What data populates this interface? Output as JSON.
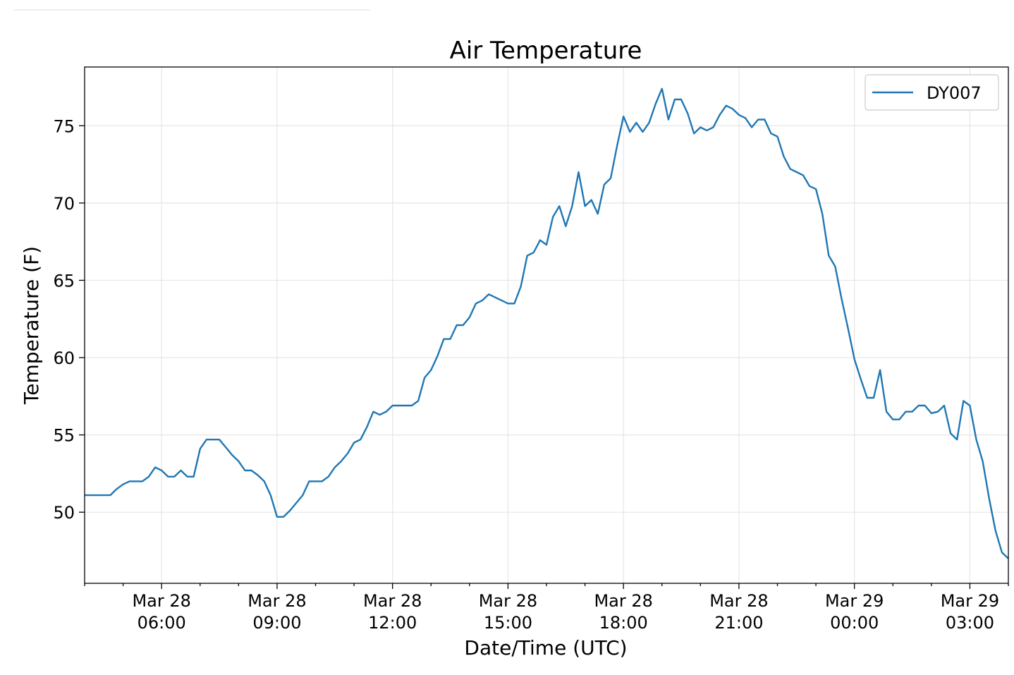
{
  "chart_data": {
    "type": "line",
    "title": "Air Temperature",
    "xlabel": "Date/Time (UTC)",
    "ylabel": "Temperature (F)",
    "x_unit": "hours (UTC), 2019-03-28 00:00 = 0",
    "xlim": [
      4.0,
      28.0
    ],
    "ylim": [
      45.4,
      78.8
    ],
    "x_ticks": [
      {
        "x": 6,
        "line1": "Mar 28",
        "line2": "06:00"
      },
      {
        "x": 9,
        "line1": "Mar 28",
        "line2": "09:00"
      },
      {
        "x": 12,
        "line1": "Mar 28",
        "line2": "12:00"
      },
      {
        "x": 15,
        "line1": "Mar 28",
        "line2": "15:00"
      },
      {
        "x": 18,
        "line1": "Mar 28",
        "line2": "18:00"
      },
      {
        "x": 21,
        "line1": "Mar 28",
        "line2": "21:00"
      },
      {
        "x": 24,
        "line1": "Mar 29",
        "line2": "00:00"
      },
      {
        "x": 27,
        "line1": "Mar 29",
        "line2": "03:00"
      }
    ],
    "x_minor_ticks": [
      4,
      5,
      7,
      8,
      10,
      11,
      13,
      14,
      16,
      17,
      19,
      20,
      22,
      23,
      25,
      26,
      28
    ],
    "y_ticks": [
      50,
      55,
      60,
      65,
      70,
      75
    ],
    "grid": true,
    "legend": {
      "placement": "top-right"
    },
    "series": [
      {
        "name": "DY007",
        "color": "#1f77b4",
        "x": [
          4.0,
          4.167,
          4.333,
          4.5,
          4.667,
          4.833,
          5.0,
          5.167,
          5.333,
          5.5,
          5.667,
          5.833,
          6.0,
          6.167,
          6.333,
          6.5,
          6.667,
          6.833,
          7.0,
          7.167,
          7.333,
          7.5,
          7.667,
          7.833,
          8.0,
          8.167,
          8.333,
          8.5,
          8.667,
          8.833,
          9.0,
          9.167,
          9.333,
          9.5,
          9.667,
          9.833,
          10.0,
          10.167,
          10.333,
          10.5,
          10.667,
          10.833,
          11.0,
          11.167,
          11.333,
          11.5,
          11.667,
          11.833,
          12.0,
          12.167,
          12.333,
          12.5,
          12.667,
          12.833,
          13.0,
          13.167,
          13.333,
          13.5,
          13.667,
          13.833,
          14.0,
          14.167,
          14.333,
          14.5,
          14.667,
          14.833,
          15.0,
          15.167,
          15.333,
          15.5,
          15.667,
          15.833,
          16.0,
          16.167,
          16.333,
          16.5,
          16.667,
          16.833,
          17.0,
          17.167,
          17.333,
          17.5,
          17.667,
          17.833,
          18.0,
          18.167,
          18.333,
          18.5,
          18.667,
          18.833,
          19.0,
          19.167,
          19.333,
          19.5,
          19.667,
          19.833,
          20.0,
          20.167,
          20.333,
          20.5,
          20.667,
          20.833,
          21.0,
          21.167,
          21.333,
          21.5,
          21.667,
          21.833,
          22.0,
          22.167,
          22.333,
          22.5,
          22.667,
          22.833,
          23.0,
          23.167,
          23.333,
          23.5,
          23.667,
          23.833,
          24.0,
          24.167,
          24.333,
          24.5,
          24.667,
          24.833,
          25.0,
          25.167,
          25.333,
          25.5,
          25.667,
          25.833,
          26.0,
          26.167,
          26.333,
          26.5,
          26.667,
          26.833,
          27.0,
          27.167,
          27.333,
          27.5,
          27.667,
          27.833,
          28.0
        ],
        "y": [
          51.1,
          51.1,
          51.1,
          51.1,
          51.1,
          51.5,
          51.8,
          52.0,
          52.0,
          52.0,
          52.3,
          52.9,
          52.7,
          52.3,
          52.3,
          52.7,
          52.3,
          52.3,
          54.1,
          54.7,
          54.7,
          54.7,
          54.2,
          53.7,
          53.3,
          52.7,
          52.7,
          52.4,
          52.0,
          51.1,
          49.7,
          49.7,
          50.1,
          50.6,
          51.1,
          52.0,
          52.0,
          52.0,
          52.3,
          52.9,
          53.3,
          53.8,
          54.5,
          54.7,
          55.5,
          56.5,
          56.3,
          56.5,
          56.9,
          56.9,
          56.9,
          56.9,
          57.2,
          58.7,
          59.2,
          60.1,
          61.2,
          61.2,
          62.1,
          62.1,
          62.6,
          63.5,
          63.7,
          64.1,
          63.9,
          63.7,
          63.5,
          63.5,
          64.6,
          66.6,
          66.8,
          67.6,
          67.3,
          69.1,
          69.8,
          68.5,
          69.8,
          72.0,
          69.8,
          70.2,
          69.3,
          71.2,
          71.6,
          73.7,
          75.6,
          74.6,
          75.2,
          74.6,
          75.2,
          76.4,
          77.4,
          75.4,
          76.7,
          76.7,
          75.8,
          74.5,
          74.9,
          74.7,
          74.9,
          75.7,
          76.3,
          76.1,
          75.7,
          75.5,
          74.9,
          75.4,
          75.4,
          74.5,
          74.3,
          73.0,
          72.2,
          72.0,
          71.8,
          71.1,
          70.9,
          69.3,
          66.6,
          65.9,
          63.8,
          61.9,
          59.9,
          58.6,
          57.4,
          57.4,
          59.2,
          56.5,
          56.0,
          56.0,
          56.5,
          56.5,
          56.9,
          56.9,
          56.4,
          56.5,
          56.9,
          55.1,
          54.7,
          57.2,
          56.9,
          54.7,
          53.3,
          50.9,
          48.8,
          47.4,
          47.0
        ]
      }
    ]
  }
}
